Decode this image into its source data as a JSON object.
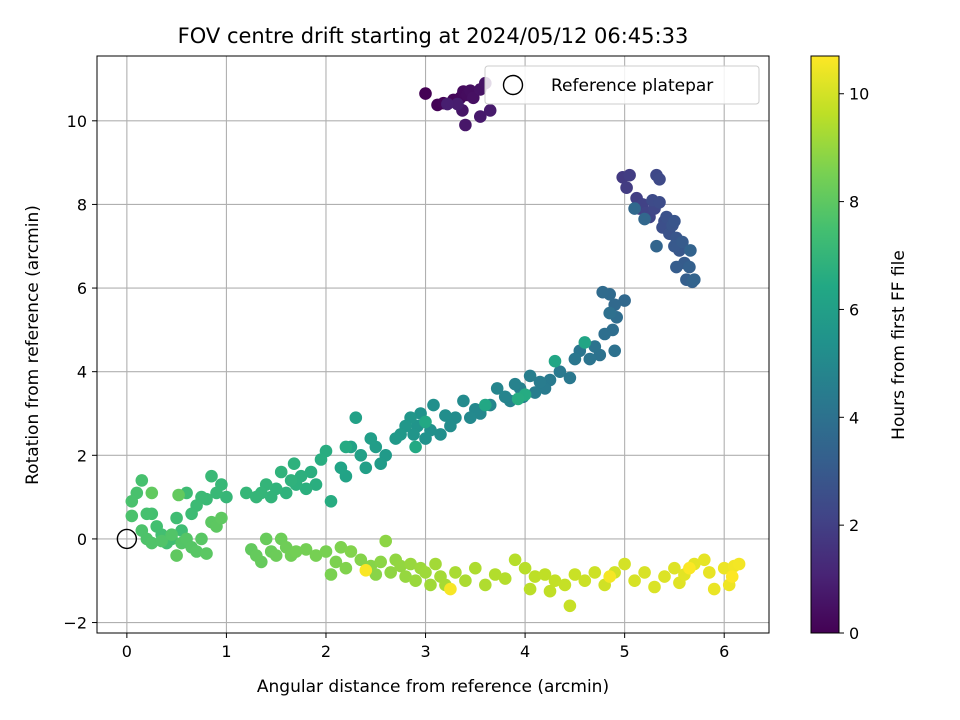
{
  "chart_data": {
    "type": "scatter",
    "title": "FOV centre drift starting at 2024/05/12 06:45:33",
    "xlabel": "Angular distance from reference (arcmin)",
    "ylabel": "Rotation from reference (arcmin)",
    "xlim": [
      -0.3,
      6.45
    ],
    "ylim": [
      -2.25,
      11.55
    ],
    "x_ticks": [
      0,
      1,
      2,
      3,
      4,
      5,
      6
    ],
    "y_ticks": [
      -2,
      0,
      2,
      4,
      6,
      8,
      10
    ],
    "grid": true,
    "legend": {
      "placement": "top-right",
      "entries": [
        "Reference platepar"
      ]
    },
    "reference_point": {
      "x": 0,
      "y": 0,
      "label": "Reference platepar"
    },
    "colorbar": {
      "label": "Hours from first FF file",
      "colormap": "viridis",
      "range": [
        0,
        10.7
      ],
      "ticks": [
        0,
        2,
        4,
        6,
        8,
        10
      ]
    },
    "color_variable": "hours",
    "segments": [
      {
        "t0": 0.0,
        "t1": 0.9,
        "points": [
          [
            3.0,
            10.65
          ],
          [
            3.12,
            10.38
          ],
          [
            3.18,
            10.42
          ],
          [
            3.28,
            10.5
          ],
          [
            3.35,
            10.55
          ],
          [
            3.38,
            10.7
          ],
          [
            3.42,
            10.62
          ],
          [
            3.45,
            10.72
          ],
          [
            3.48,
            10.55
          ],
          [
            3.55,
            10.75
          ],
          [
            3.6,
            10.9
          ],
          [
            3.37,
            10.25
          ],
          [
            3.4,
            9.9
          ],
          [
            3.55,
            10.1
          ],
          [
            3.65,
            10.25
          ],
          [
            3.32,
            10.4
          ],
          [
            3.22,
            10.4
          ]
        ]
      },
      {
        "t0": 1.8,
        "t1": 3.6,
        "points": [
          [
            4.98,
            8.65
          ],
          [
            5.02,
            8.4
          ],
          [
            5.05,
            8.7
          ],
          [
            5.12,
            8.15
          ],
          [
            5.15,
            7.9
          ],
          [
            5.18,
            8.0
          ],
          [
            5.22,
            7.8
          ],
          [
            5.25,
            7.7
          ],
          [
            5.3,
            7.9
          ],
          [
            5.32,
            8.7
          ],
          [
            5.35,
            8.6
          ],
          [
            5.28,
            8.1
          ],
          [
            5.35,
            8.05
          ],
          [
            5.4,
            7.6
          ],
          [
            5.38,
            7.45
          ],
          [
            5.42,
            7.7
          ],
          [
            5.45,
            7.3
          ],
          [
            5.48,
            7.5
          ],
          [
            5.5,
            7.6
          ],
          [
            5.52,
            7.2
          ],
          [
            5.55,
            6.9
          ],
          [
            5.5,
            7.0
          ],
          [
            5.58,
            7.1
          ],
          [
            5.6,
            6.6
          ],
          [
            5.52,
            6.5
          ],
          [
            5.62,
            6.2
          ],
          [
            5.65,
            6.5
          ],
          [
            5.68,
            6.15
          ],
          [
            5.66,
            6.9
          ],
          [
            5.7,
            6.2
          ],
          [
            5.32,
            7.0
          ],
          [
            5.2,
            7.65
          ],
          [
            5.1,
            7.9
          ]
        ]
      },
      {
        "t0": 3.6,
        "t1": 6.6,
        "points": [
          [
            5.0,
            5.7
          ],
          [
            4.9,
            5.6
          ],
          [
            4.85,
            5.85
          ],
          [
            4.78,
            5.9
          ],
          [
            4.92,
            5.3
          ],
          [
            4.88,
            5.0
          ],
          [
            4.8,
            4.9
          ],
          [
            4.85,
            5.4
          ],
          [
            4.9,
            4.5
          ],
          [
            4.75,
            4.4
          ],
          [
            4.7,
            4.6
          ],
          [
            4.65,
            4.3
          ],
          [
            4.55,
            4.5
          ],
          [
            4.5,
            4.3
          ],
          [
            4.45,
            3.85
          ],
          [
            4.35,
            4.0
          ],
          [
            4.25,
            3.8
          ],
          [
            4.2,
            3.6
          ],
          [
            4.15,
            3.75
          ],
          [
            4.1,
            3.5
          ],
          [
            4.05,
            3.9
          ],
          [
            3.98,
            3.4
          ],
          [
            3.95,
            3.6
          ],
          [
            3.9,
            3.7
          ],
          [
            3.85,
            3.3
          ],
          [
            3.8,
            3.4
          ],
          [
            3.72,
            3.6
          ],
          [
            3.65,
            3.2
          ],
          [
            3.55,
            3.0
          ],
          [
            3.5,
            3.1
          ],
          [
            3.45,
            2.9
          ],
          [
            3.38,
            3.3
          ],
          [
            3.3,
            2.9
          ],
          [
            3.25,
            2.7
          ],
          [
            3.2,
            2.95
          ],
          [
            3.15,
            2.5
          ],
          [
            3.08,
            3.2
          ],
          [
            3.05,
            2.6
          ],
          [
            3.0,
            2.4
          ],
          [
            2.95,
            3.0
          ],
          [
            2.92,
            2.7
          ],
          [
            2.88,
            2.5
          ],
          [
            2.85,
            2.9
          ],
          [
            2.8,
            2.7
          ],
          [
            2.75,
            2.5
          ],
          [
            2.7,
            2.4
          ],
          [
            2.6,
            2.0
          ],
          [
            2.55,
            1.8
          ],
          [
            2.5,
            2.2
          ],
          [
            2.45,
            2.4
          ],
          [
            2.4,
            1.7
          ],
          [
            2.35,
            2.0
          ],
          [
            2.3,
            2.9
          ],
          [
            2.25,
            2.2
          ],
          [
            2.2,
            1.5
          ],
          [
            2.15,
            1.7
          ],
          [
            4.6,
            4.7
          ],
          [
            4.3,
            4.25
          ],
          [
            3.6,
            3.2
          ],
          [
            3.0,
            2.8
          ],
          [
            2.9,
            2.2
          ],
          [
            2.2,
            2.2
          ],
          [
            4.0,
            3.45
          ],
          [
            3.93,
            3.35
          ]
        ]
      },
      {
        "t0": 6.6,
        "t1": 8.1,
        "points": [
          [
            2.05,
            0.9
          ],
          [
            2.0,
            2.1
          ],
          [
            1.95,
            1.9
          ],
          [
            1.9,
            1.3
          ],
          [
            1.85,
            1.6
          ],
          [
            1.8,
            1.2
          ],
          [
            1.75,
            1.5
          ],
          [
            1.7,
            1.3
          ],
          [
            1.68,
            1.8
          ],
          [
            1.65,
            1.4
          ],
          [
            1.6,
            1.1
          ],
          [
            1.55,
            1.6
          ],
          [
            1.5,
            1.2
          ],
          [
            1.45,
            1.0
          ],
          [
            1.4,
            1.3
          ],
          [
            1.35,
            1.1
          ],
          [
            1.3,
            1.0
          ],
          [
            1.2,
            1.1
          ],
          [
            1.0,
            1.0
          ],
          [
            0.95,
            1.3
          ],
          [
            0.9,
            1.1
          ],
          [
            0.85,
            1.5
          ],
          [
            0.8,
            0.95
          ],
          [
            0.75,
            1.0
          ],
          [
            0.7,
            0.8
          ],
          [
            0.65,
            0.6
          ],
          [
            0.6,
            1.1
          ],
          [
            0.55,
            0.2
          ],
          [
            0.5,
            0.5
          ],
          [
            0.45,
            0.0
          ],
          [
            0.4,
            -0.1
          ],
          [
            0.35,
            0.1
          ],
          [
            0.3,
            0.3
          ],
          [
            0.25,
            0.6
          ],
          [
            0.2,
            0.6
          ],
          [
            0.15,
            1.4
          ],
          [
            0.1,
            1.1
          ],
          [
            0.05,
            0.9
          ],
          [
            0.05,
            0.55
          ],
          [
            0.15,
            0.2
          ],
          [
            0.2,
            0.0
          ],
          [
            0.25,
            -0.1
          ],
          [
            0.35,
            -0.05
          ],
          [
            0.45,
            0.1
          ],
          [
            0.55,
            -0.1
          ],
          [
            0.6,
            0.0
          ],
          [
            0.65,
            -0.2
          ],
          [
            0.7,
            -0.3
          ],
          [
            0.75,
            0.0
          ],
          [
            0.8,
            -0.35
          ],
          [
            0.85,
            0.4
          ],
          [
            0.9,
            0.3
          ],
          [
            0.95,
            0.5
          ],
          [
            0.5,
            -0.4
          ],
          [
            0.25,
            1.1
          ],
          [
            0.52,
            1.05
          ]
        ]
      },
      {
        "t0": 8.1,
        "t1": 10.7,
        "points": [
          [
            1.25,
            -0.25
          ],
          [
            1.3,
            -0.4
          ],
          [
            1.35,
            -0.55
          ],
          [
            1.4,
            -0.0
          ],
          [
            1.45,
            -0.3
          ],
          [
            1.5,
            -0.4
          ],
          [
            1.55,
            0.0
          ],
          [
            1.6,
            -0.2
          ],
          [
            1.65,
            -0.4
          ],
          [
            1.7,
            -0.3
          ],
          [
            1.8,
            -0.25
          ],
          [
            1.9,
            -0.4
          ],
          [
            2.0,
            -0.3
          ],
          [
            2.05,
            -0.85
          ],
          [
            2.1,
            -0.55
          ],
          [
            2.15,
            -0.2
          ],
          [
            2.2,
            -0.7
          ],
          [
            2.25,
            -0.3
          ],
          [
            2.35,
            -0.5
          ],
          [
            2.45,
            -0.65
          ],
          [
            2.5,
            -0.85
          ],
          [
            2.55,
            -0.55
          ],
          [
            2.6,
            -0.05
          ],
          [
            2.65,
            -0.8
          ],
          [
            2.7,
            -0.5
          ],
          [
            2.75,
            -0.65
          ],
          [
            2.8,
            -0.9
          ],
          [
            2.85,
            -0.6
          ],
          [
            2.9,
            -1.0
          ],
          [
            2.95,
            -0.7
          ],
          [
            3.0,
            -0.8
          ],
          [
            3.05,
            -1.1
          ],
          [
            3.1,
            -0.6
          ],
          [
            3.15,
            -0.9
          ],
          [
            3.2,
            -1.1
          ],
          [
            3.3,
            -0.8
          ],
          [
            3.4,
            -1.0
          ],
          [
            3.5,
            -0.7
          ],
          [
            3.6,
            -1.1
          ],
          [
            3.7,
            -0.85
          ],
          [
            3.8,
            -0.95
          ],
          [
            3.9,
            -0.5
          ],
          [
            4.0,
            -0.7
          ],
          [
            4.05,
            -1.2
          ],
          [
            4.1,
            -0.9
          ],
          [
            4.2,
            -0.85
          ],
          [
            4.25,
            -1.25
          ],
          [
            4.3,
            -1.0
          ],
          [
            4.4,
            -1.1
          ],
          [
            4.45,
            -1.6
          ],
          [
            4.5,
            -0.85
          ],
          [
            4.6,
            -1.0
          ],
          [
            4.7,
            -0.8
          ],
          [
            4.8,
            -1.1
          ],
          [
            4.9,
            -0.8
          ],
          [
            5.0,
            -0.6
          ],
          [
            5.1,
            -1.0
          ],
          [
            5.2,
            -0.8
          ],
          [
            5.3,
            -1.15
          ],
          [
            5.4,
            -0.9
          ],
          [
            5.5,
            -0.7
          ],
          [
            5.55,
            -1.05
          ],
          [
            5.6,
            -0.85
          ],
          [
            5.7,
            -0.6
          ],
          [
            5.8,
            -0.5
          ],
          [
            5.85,
            -0.8
          ],
          [
            5.9,
            -1.2
          ],
          [
            6.0,
            -0.7
          ],
          [
            6.05,
            -1.1
          ],
          [
            6.1,
            -0.65
          ],
          [
            6.15,
            -0.6
          ],
          [
            4.85,
            -0.9
          ],
          [
            3.25,
            -1.2
          ],
          [
            2.4,
            -0.75
          ],
          [
            5.65,
            -0.7
          ],
          [
            6.08,
            -0.9
          ]
        ]
      }
    ]
  }
}
